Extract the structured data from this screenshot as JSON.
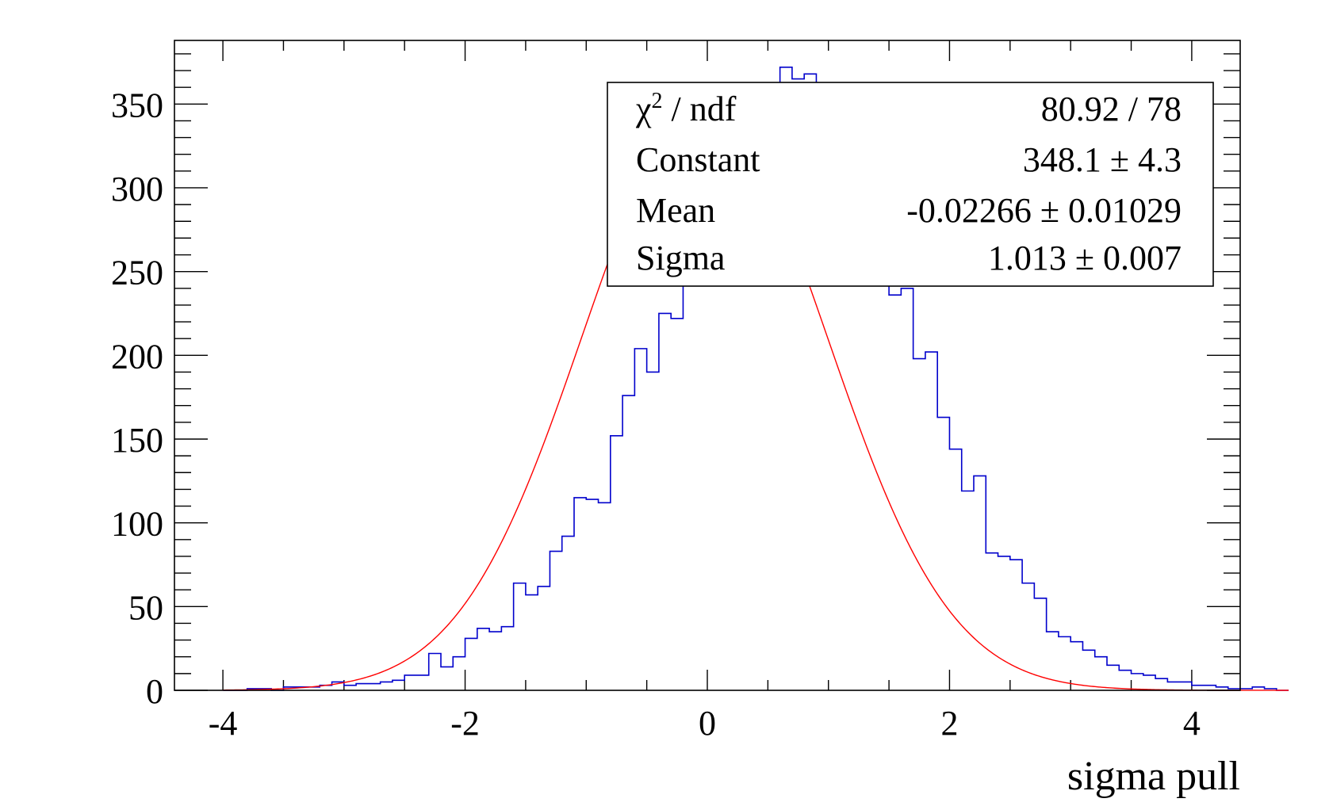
{
  "chart_data": {
    "type": "bar",
    "histogram_style": "step",
    "xlabel": "sigma pull",
    "ylabel": "",
    "xlim": [
      -4.4,
      4.4
    ],
    "ylim": [
      0,
      388
    ],
    "x_ticks": [
      -4,
      -2,
      0,
      2,
      4
    ],
    "y_ticks": [
      0,
      50,
      100,
      150,
      200,
      250,
      300,
      350
    ],
    "grid": false,
    "legend": "none",
    "colors": {
      "histogram": "#0000cc",
      "fit": "#ff0000",
      "frame": "#000000"
    },
    "bins": {
      "x_low": -4.0,
      "width": 0.1,
      "values": [
        0,
        0,
        1,
        1,
        0,
        2,
        2,
        2,
        3,
        5,
        3,
        4,
        4,
        5,
        6,
        9,
        9,
        22,
        14,
        20,
        31,
        37,
        35,
        38,
        64,
        57,
        62,
        83,
        92,
        115,
        114,
        112,
        152,
        176,
        204,
        190,
        225,
        222,
        252,
        270,
        290,
        300,
        310,
        325,
        340,
        360,
        372,
        365,
        368,
        355,
        345,
        330,
        305,
        285,
        258,
        236,
        240,
        198,
        202,
        163,
        144,
        119,
        128,
        82,
        80,
        78,
        64,
        55,
        35,
        32,
        29,
        24,
        20,
        15,
        12,
        10,
        9,
        7,
        5,
        5,
        3,
        3,
        2,
        1,
        1,
        2,
        1,
        0
      ]
    },
    "fit": {
      "function": "gaus",
      "constant": 348.1,
      "mean": -0.02266,
      "sigma": 1.013
    },
    "stats_box": {
      "placement": "top-right",
      "rows": [
        {
          "label_main": "χ",
          "label_sup": "2",
          "label_rest": " / ndf",
          "value": "80.92 / 78"
        },
        {
          "label": "Constant",
          "value": "348.1 ± 4.3"
        },
        {
          "label": "Mean",
          "value": "-0.02266 ± 0.01029"
        },
        {
          "label": "Sigma",
          "value": "1.013 ± 0.007"
        }
      ]
    }
  }
}
